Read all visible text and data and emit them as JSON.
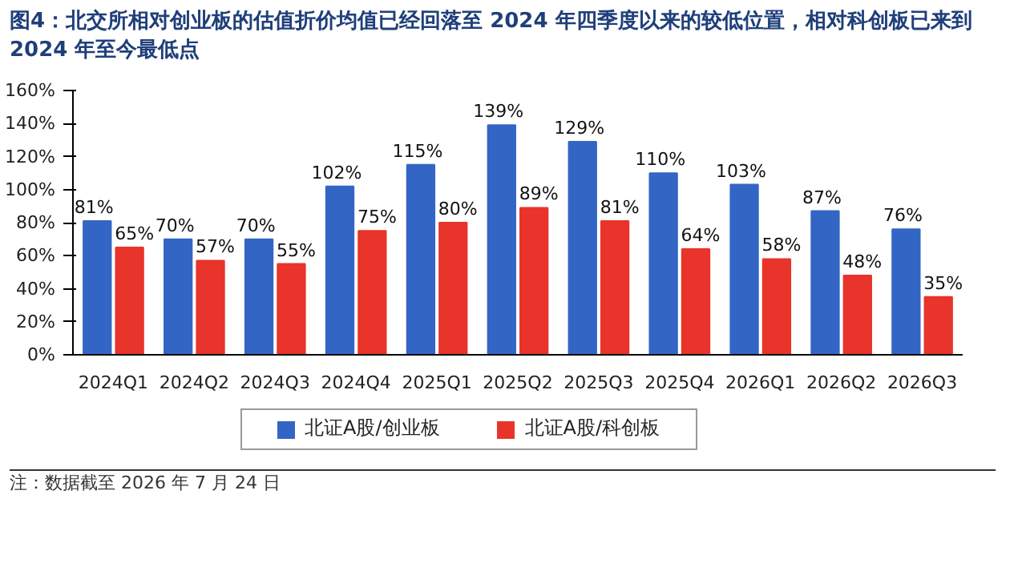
{
  "chart_data": {
    "type": "bar",
    "title": "图4：北交所相对创业板的估值折价均值已经回落至 2024 年四季度以来的较低位置，相对科创板已来到 2024 年至今最低点",
    "categories": [
      "2024Q1",
      "2024Q2",
      "2024Q3",
      "2024Q4",
      "2025Q1",
      "2025Q2",
      "2025Q3",
      "2025Q4",
      "2026Q1",
      "2026Q2",
      "2026Q3"
    ],
    "series": [
      {
        "name": "北证A股/创业板",
        "color": "#3366c4",
        "values": [
          81,
          70,
          70,
          102,
          115,
          139,
          129,
          110,
          103,
          87,
          76
        ],
        "value_labels": [
          "81%",
          "70%",
          "70%",
          "102%",
          "115%",
          "139%",
          "129%",
          "110%",
          "103%",
          "87%",
          "76%"
        ]
      },
      {
        "name": "北证A股/科创板",
        "color": "#e8342a",
        "values": [
          65,
          57,
          55,
          75,
          80,
          89,
          81,
          64,
          58,
          48,
          35
        ],
        "value_labels": [
          "65%",
          "57%",
          "55%",
          "75%",
          "80%",
          "89%",
          "81%",
          "64%",
          "58%",
          "48%",
          "35%"
        ]
      }
    ],
    "ylim": [
      0,
      160
    ],
    "yticks": [
      {
        "value": 0,
        "label": "0%"
      },
      {
        "value": 20,
        "label": "20%"
      },
      {
        "value": 40,
        "label": "40%"
      },
      {
        "value": 60,
        "label": "60%"
      },
      {
        "value": 80,
        "label": "80%"
      },
      {
        "value": 100,
        "label": "100%"
      },
      {
        "value": 120,
        "label": "120%"
      },
      {
        "value": 140,
        "label": "140%"
      },
      {
        "value": 160,
        "label": "160%"
      }
    ],
    "grid": false,
    "legend": "bottom",
    "annotations": [
      "注：数据截至 2026 年 7 月 24 日"
    ]
  }
}
